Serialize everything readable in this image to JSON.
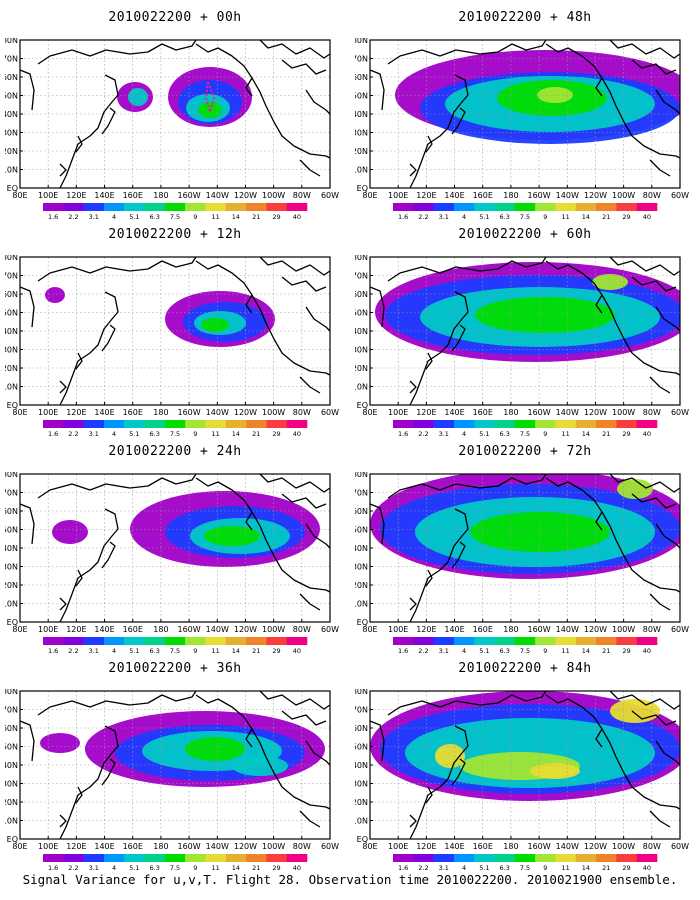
{
  "panels": [
    {
      "title": "2010022200 + 00h"
    },
    {
      "title": "2010022200 + 48h"
    },
    {
      "title": "2010022200 + 12h"
    },
    {
      "title": "2010022200 + 60h"
    },
    {
      "title": "2010022200 + 24h"
    },
    {
      "title": "2010022200 + 72h"
    },
    {
      "title": "2010022200 + 36h"
    },
    {
      "title": "2010022200 + 84h"
    }
  ],
  "lat_labels": [
    "80N",
    "70N",
    "60N",
    "50N",
    "40N",
    "30N",
    "20N",
    "10N",
    "EQ"
  ],
  "lon_labels": [
    "80E",
    "100E",
    "120E",
    "140E",
    "160E",
    "180",
    "160W",
    "140W",
    "120W",
    "100W",
    "80W",
    "60W"
  ],
  "colorbar": {
    "labels": [
      "1.6",
      "2.2",
      "3.1",
      "4",
      "5.1",
      "6.3",
      "7.5",
      "9",
      "11",
      "14",
      "21",
      "29",
      "40"
    ],
    "colors": [
      "#a000c8",
      "#8200dc",
      "#1e3cff",
      "#0096ff",
      "#00c8c8",
      "#00d28c",
      "#00dc00",
      "#a0e632",
      "#e6dc32",
      "#e6af2d",
      "#f08228",
      "#fa3c3c",
      "#f00082"
    ]
  },
  "land_color": "#000000",
  "grid_color": "#9a9a9a",
  "marker_color": "#ff1493",
  "footer": "Signal Variance for u,v,T. Flight 28. Observation time 2010022200. 2010021900 ensemble."
}
